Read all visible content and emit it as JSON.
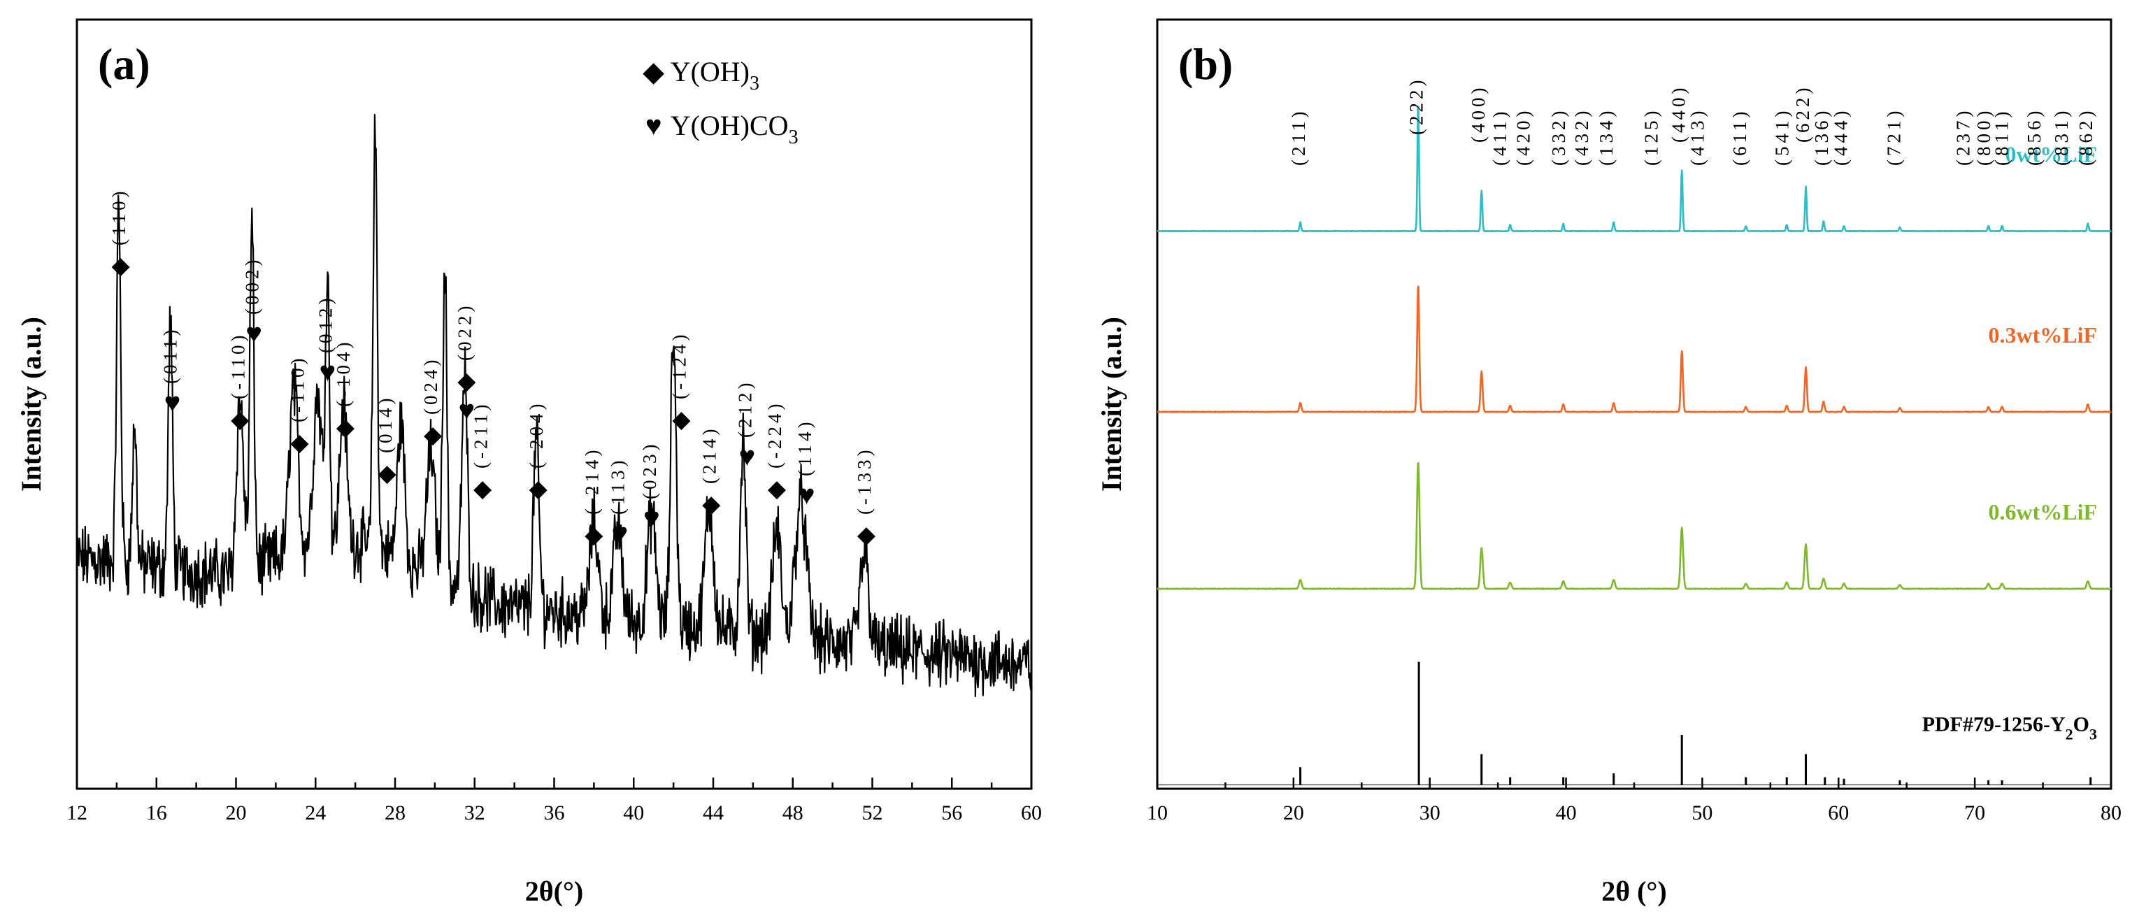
{
  "chart_data": [
    {
      "type": "line",
      "panel_label": "(a)",
      "xlabel": "2θ(°)",
      "ylabel": "Intensity (a.u.)",
      "xlim": [
        12,
        60
      ],
      "xticks": [
        "12",
        "16",
        "20",
        "24",
        "28",
        "32",
        "36",
        "40",
        "44",
        "48",
        "52",
        "56",
        "60"
      ],
      "legend": [
        {
          "marker": "◆",
          "label": "Y(OH)",
          "sub": "3"
        },
        {
          "marker": "♥",
          "label": "Y(OH)CO",
          "sub": "3"
        }
      ],
      "background": {
        "ystart": 0.3,
        "yend": 0.16,
        "noise": 0.035
      },
      "peaks": [
        {
          "x": 14.1,
          "h": 0.46,
          "w": 0.15
        },
        {
          "x": 14.9,
          "h": 0.18,
          "w": 0.15
        },
        {
          "x": 16.7,
          "h": 0.32,
          "w": 0.15
        },
        {
          "x": 20.2,
          "h": 0.22,
          "w": 0.25
        },
        {
          "x": 20.8,
          "h": 0.44,
          "w": 0.15
        },
        {
          "x": 22.9,
          "h": 0.22,
          "w": 0.3
        },
        {
          "x": 24.1,
          "h": 0.2,
          "w": 0.3
        },
        {
          "x": 24.6,
          "h": 0.34,
          "w": 0.15
        },
        {
          "x": 25.4,
          "h": 0.18,
          "w": 0.25
        },
        {
          "x": 27.0,
          "h": 0.54,
          "w": 0.15
        },
        {
          "x": 28.3,
          "h": 0.18,
          "w": 0.25
        },
        {
          "x": 29.8,
          "h": 0.16,
          "w": 0.3
        },
        {
          "x": 30.5,
          "h": 0.42,
          "w": 0.15
        },
        {
          "x": 31.5,
          "h": 0.28,
          "w": 0.2
        },
        {
          "x": 35.1,
          "h": 0.22,
          "w": 0.2
        },
        {
          "x": 38.0,
          "h": 0.12,
          "w": 0.3
        },
        {
          "x": 39.2,
          "h": 0.12,
          "w": 0.3
        },
        {
          "x": 40.9,
          "h": 0.14,
          "w": 0.3
        },
        {
          "x": 42.0,
          "h": 0.38,
          "w": 0.2
        },
        {
          "x": 43.8,
          "h": 0.16,
          "w": 0.3
        },
        {
          "x": 45.5,
          "h": 0.25,
          "w": 0.2
        },
        {
          "x": 47.2,
          "h": 0.14,
          "w": 0.3
        },
        {
          "x": 48.4,
          "h": 0.18,
          "w": 0.4
        },
        {
          "x": 51.6,
          "h": 0.12,
          "w": 0.3
        }
      ],
      "annotations": [
        {
          "x": 14.2,
          "y": 0.67,
          "marker": "◆",
          "hkl": "(110)"
        },
        {
          "x": 16.8,
          "y": 0.49,
          "marker": "♥",
          "hkl": "(011)"
        },
        {
          "x": 20.2,
          "y": 0.47,
          "marker": "◆",
          "hkl": "(-110)"
        },
        {
          "x": 20.9,
          "y": 0.58,
          "marker": "♥",
          "hkl": "(002)"
        },
        {
          "x": 23.2,
          "y": 0.44,
          "marker": "◆",
          "hkl": "(-110)"
        },
        {
          "x": 24.6,
          "y": 0.53,
          "marker": "♥",
          "hkl": "(012)"
        },
        {
          "x": 25.5,
          "y": 0.46,
          "marker": "◆",
          "hkl": "(-104)"
        },
        {
          "x": 27.6,
          "y": 0.4,
          "marker": "◆",
          "hkl": "(014)"
        },
        {
          "x": 29.9,
          "y": 0.45,
          "marker": "◆",
          "hkl": "(024)"
        },
        {
          "x": 31.6,
          "y": 0.52,
          "marker": "◆",
          "hkl": "(022)"
        },
        {
          "x": 31.6,
          "y": 0.48,
          "marker": "♥",
          "hkl": ""
        },
        {
          "x": 32.4,
          "y": 0.38,
          "marker": "◆",
          "hkl": "(-211)"
        },
        {
          "x": 35.2,
          "y": 0.38,
          "marker": "◆",
          "hkl": "(-204)"
        },
        {
          "x": 38.0,
          "y": 0.32,
          "marker": "◆",
          "hkl": "(-214)"
        },
        {
          "x": 39.3,
          "y": 0.32,
          "marker": "♥",
          "hkl": "(113)"
        },
        {
          "x": 40.9,
          "y": 0.34,
          "marker": "♥",
          "hkl": "(023)"
        },
        {
          "x": 42.4,
          "y": 0.47,
          "marker": "◆",
          "hkl": "(-124)"
        },
        {
          "x": 43.9,
          "y": 0.36,
          "marker": "◆",
          "hkl": "(214)"
        },
        {
          "x": 45.7,
          "y": 0.42,
          "marker": "♥",
          "hkl": "(212)"
        },
        {
          "x": 47.2,
          "y": 0.38,
          "marker": "◆",
          "hkl": "(-224)"
        },
        {
          "x": 48.7,
          "y": 0.37,
          "marker": "♥",
          "hkl": "(114)"
        },
        {
          "x": 51.7,
          "y": 0.32,
          "marker": "◆",
          "hkl": "(-133)"
        }
      ]
    },
    {
      "type": "line",
      "panel_label": "(b)",
      "xlabel": "2θ (°)",
      "ylabel": "Intensity (a.u.)",
      "xlim": [
        10,
        80
      ],
      "xticks": [
        "10",
        "20",
        "30",
        "40",
        "50",
        "60",
        "70",
        "80"
      ],
      "series": [
        {
          "name": "0wt%LiF",
          "color": "#2ABFC6",
          "baseline": 0.725,
          "scale": 0.165
        },
        {
          "name": "0.3wt%LiF",
          "color": "#F26522",
          "baseline": 0.49,
          "scale": 0.165
        },
        {
          "name": "0.6wt%LiF",
          "color": "#7DB928",
          "baseline": 0.26,
          "scale": 0.165
        }
      ],
      "reference": {
        "name": "PDF#79-1256-Y",
        "sub": "2",
        "name_tail": "O",
        "sub2": "3",
        "baseline": 0.005,
        "lines": [
          {
            "x": 20.5,
            "h": 0.023
          },
          {
            "x": 29.2,
            "h": 0.16
          },
          {
            "x": 33.8,
            "h": 0.04
          },
          {
            "x": 35.9,
            "h": 0.01
          },
          {
            "x": 39.8,
            "h": 0.01
          },
          {
            "x": 43.5,
            "h": 0.015
          },
          {
            "x": 48.5,
            "h": 0.065
          },
          {
            "x": 53.2,
            "h": 0.01
          },
          {
            "x": 56.2,
            "h": 0.01
          },
          {
            "x": 57.6,
            "h": 0.04
          },
          {
            "x": 59.0,
            "h": 0.01
          },
          {
            "x": 60.4,
            "h": 0.008
          },
          {
            "x": 64.5,
            "h": 0.006
          },
          {
            "x": 71.0,
            "h": 0.006
          },
          {
            "x": 72.0,
            "h": 0.006
          },
          {
            "x": 78.5,
            "h": 0.01
          }
        ]
      },
      "peaks": [
        {
          "x": 20.5,
          "h": 0.07
        },
        {
          "x": 29.15,
          "h": 1.0
        },
        {
          "x": 33.8,
          "h": 0.32
        },
        {
          "x": 35.9,
          "h": 0.05
        },
        {
          "x": 39.8,
          "h": 0.06
        },
        {
          "x": 43.5,
          "h": 0.07
        },
        {
          "x": 48.5,
          "h": 0.48
        },
        {
          "x": 53.2,
          "h": 0.04
        },
        {
          "x": 56.2,
          "h": 0.05
        },
        {
          "x": 57.6,
          "h": 0.35
        },
        {
          "x": 58.9,
          "h": 0.08
        },
        {
          "x": 60.4,
          "h": 0.04
        },
        {
          "x": 64.5,
          "h": 0.03
        },
        {
          "x": 71.0,
          "h": 0.04
        },
        {
          "x": 72.0,
          "h": 0.04
        },
        {
          "x": 78.3,
          "h": 0.06
        }
      ],
      "hkl_labels": [
        {
          "x": 20.5,
          "text": "(211)"
        },
        {
          "x": 29.15,
          "text": "(222)"
        },
        {
          "x": 33.7,
          "text": "(400)"
        },
        {
          "x": 35.3,
          "text": "(411)"
        },
        {
          "x": 37.0,
          "text": "(420)"
        },
        {
          "x": 39.6,
          "text": "(332)"
        },
        {
          "x": 41.3,
          "text": "(432)"
        },
        {
          "x": 43.1,
          "text": "(134)"
        },
        {
          "x": 46.4,
          "text": "(125)"
        },
        {
          "x": 48.4,
          "text": "(440)"
        },
        {
          "x": 49.8,
          "text": "(413)"
        },
        {
          "x": 52.9,
          "text": "(611)"
        },
        {
          "x": 56.0,
          "text": "(541)"
        },
        {
          "x": 57.5,
          "text": "(622)"
        },
        {
          "x": 58.9,
          "text": "(136)"
        },
        {
          "x": 60.3,
          "text": "(444)"
        },
        {
          "x": 64.2,
          "text": "(721)"
        },
        {
          "x": 69.3,
          "text": "(237)"
        },
        {
          "x": 70.8,
          "text": "(800)"
        },
        {
          "x": 72.1,
          "text": "(811)"
        },
        {
          "x": 74.5,
          "text": "(856)"
        },
        {
          "x": 76.5,
          "text": "(831)"
        },
        {
          "x": 78.3,
          "text": "(862)"
        }
      ]
    }
  ]
}
